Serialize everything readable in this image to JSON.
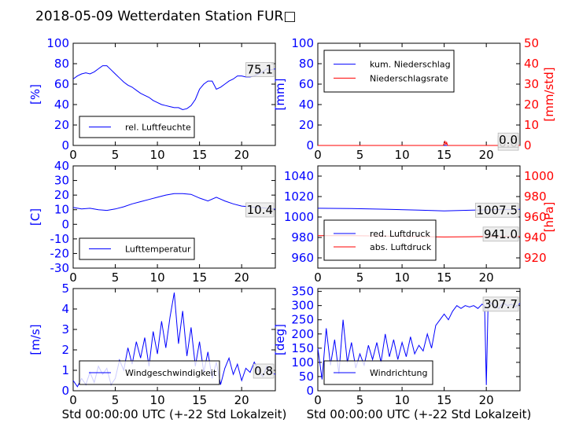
{
  "title": "2018-05-09 Wetterdaten Station FUR□",
  "colors": {
    "primary": "#0000ff",
    "secondary": "#ff0000"
  },
  "chart_data": [
    {
      "id": "humidity",
      "type": "line",
      "xlim": [
        0,
        24
      ],
      "ylim": [
        0,
        100
      ],
      "xticks": [
        0,
        5,
        10,
        15,
        20
      ],
      "yticks": [
        0,
        20,
        40,
        60,
        80,
        100
      ],
      "ylabel": "[%]",
      "legend": {
        "placement": "lower-left",
        "entries": [
          "rel. Luftfeuchte"
        ]
      },
      "last_value_label": "75.1",
      "series": [
        {
          "name": "rel. Luftfeuchte",
          "color": "#0000ff",
          "x": [
            0,
            0.5,
            1,
            1.5,
            2,
            2.5,
            3,
            3.5,
            4,
            4.5,
            5,
            5.5,
            6,
            6.5,
            7,
            7.5,
            8,
            8.5,
            9,
            9.5,
            10,
            10.5,
            11,
            11.5,
            12,
            12.5,
            13,
            13.5,
            14,
            14.5,
            15,
            15.5,
            16,
            16.5,
            17,
            17.5,
            18,
            18.5,
            19,
            19.5,
            20,
            20.5,
            21,
            21.5,
            22,
            22.5,
            23,
            23.5,
            24
          ],
          "y": [
            65,
            68,
            70,
            71,
            70,
            72,
            75,
            78,
            78,
            74,
            70,
            66,
            62,
            59,
            57,
            54,
            51,
            49,
            47,
            44,
            42,
            40,
            39,
            38,
            37,
            37,
            35,
            36,
            39,
            45,
            55,
            60,
            63,
            63,
            55,
            57,
            60,
            63,
            65,
            68,
            68,
            67,
            67,
            68,
            70,
            72,
            75,
            74,
            75
          ]
        }
      ]
    },
    {
      "id": "precipitation",
      "type": "line",
      "xlim": [
        0,
        24
      ],
      "ylim": [
        0,
        100
      ],
      "y2lim": [
        0,
        50
      ],
      "xticks": [
        0,
        5,
        10,
        15,
        20
      ],
      "yticks": [
        0,
        20,
        40,
        60,
        80,
        100
      ],
      "y2ticks": [
        0,
        10,
        20,
        30,
        40,
        50
      ],
      "ylabel": "[mm]",
      "y2label": "[mm/std]",
      "legend": {
        "placement": "top-left",
        "entries": [
          "kum. Niederschlag",
          "Niederschlagsrate"
        ]
      },
      "last_value_label": "0.0",
      "last_value_label_2": "0.0",
      "series": [
        {
          "name": "kum. Niederschlag",
          "axis": "left",
          "color": "#0000ff",
          "x": [
            0,
            24
          ],
          "y": [
            0,
            0
          ]
        },
        {
          "name": "Niederschlagsrate",
          "axis": "right",
          "color": "#ff0000",
          "x": [
            0,
            14.9,
            15.0,
            15.1,
            15.2,
            15.3,
            15.4,
            24
          ],
          "y": [
            0,
            0,
            1.0,
            2.0,
            0.5,
            1.5,
            0,
            0
          ]
        }
      ]
    },
    {
      "id": "temperature",
      "type": "line",
      "xlim": [
        0,
        24
      ],
      "ylim": [
        -30,
        40
      ],
      "xticks": [
        0,
        5,
        10,
        15,
        20
      ],
      "yticks": [
        -30,
        -20,
        -10,
        0,
        10,
        20,
        30,
        40
      ],
      "ylabel": "[C]",
      "legend": {
        "placement": "lower-left",
        "entries": [
          "Lufttemperatur"
        ]
      },
      "last_value_label": "10.4",
      "series": [
        {
          "name": "Lufttemperatur",
          "color": "#0000ff",
          "x": [
            0,
            1,
            2,
            3,
            4,
            5,
            6,
            7,
            8,
            9,
            10,
            11,
            12,
            13,
            14,
            15,
            16,
            17,
            18,
            19,
            20,
            21,
            22,
            23,
            24
          ],
          "y": [
            11.5,
            10.5,
            11,
            10,
            9.5,
            10.5,
            12,
            14,
            15.5,
            17,
            18.5,
            20,
            21,
            21,
            20.5,
            18,
            16,
            18.5,
            16,
            14,
            12.5,
            12,
            11.5,
            11,
            10.4
          ]
        }
      ]
    },
    {
      "id": "pressure",
      "type": "line",
      "xlim": [
        0,
        24
      ],
      "ylim": [
        950,
        1050
      ],
      "y2lim": [
        910,
        1010
      ],
      "xticks": [
        0,
        5,
        10,
        15,
        20
      ],
      "yticks": [
        960,
        980,
        1000,
        1020,
        1040
      ],
      "y2ticks": [
        920,
        940,
        960,
        980,
        1000
      ],
      "y2label": "[hPa]",
      "legend": {
        "placement": "lower-left",
        "entries": [
          "red. Luftdruck",
          "abs. Luftdruck"
        ]
      },
      "last_value_label": "1007.5",
      "last_value_label_2": "941.0",
      "series": [
        {
          "name": "red. Luftdruck",
          "axis": "left",
          "color": "#0000ff",
          "x": [
            0,
            4,
            8,
            12,
            15,
            18,
            21,
            24
          ],
          "y": [
            1008.5,
            1008.3,
            1007.6,
            1006.8,
            1006.0,
            1006.6,
            1007.2,
            1007.5
          ]
        },
        {
          "name": "abs. Luftdruck",
          "axis": "right",
          "color": "#ff0000",
          "x": [
            0,
            4,
            8,
            12,
            15,
            18,
            21,
            24
          ],
          "y": [
            941.8,
            941.7,
            941.3,
            940.8,
            940.5,
            940.7,
            940.9,
            941.0
          ]
        }
      ]
    },
    {
      "id": "windspeed",
      "type": "line",
      "xlim": [
        0,
        24
      ],
      "ylim": [
        0,
        5
      ],
      "xticks": [
        0,
        5,
        10,
        15,
        20
      ],
      "yticks": [
        0,
        1,
        2,
        3,
        4,
        5
      ],
      "ylabel": "[m/s]",
      "xlabel": "Std 00:00:00 UTC (+-22 Std Lokalzeit)",
      "legend": {
        "placement": "lower-left",
        "entries": [
          "Windgeschwindigkeit"
        ]
      },
      "last_value_label": "0.8",
      "series": [
        {
          "name": "Windgeschwindigkeit",
          "color": "#0000ff",
          "x": [
            0,
            0.5,
            1,
            1.5,
            2,
            2.5,
            3,
            3.5,
            4,
            4.5,
            5,
            5.5,
            6,
            6.5,
            7,
            7.5,
            8,
            8.5,
            9,
            9.5,
            10,
            10.5,
            11,
            11.5,
            12,
            12.5,
            13,
            13.5,
            14,
            14.5,
            15,
            15.5,
            16,
            16.5,
            17,
            17.5,
            18,
            18.5,
            19,
            19.5,
            20,
            20.5,
            21,
            21.5,
            22,
            22.5,
            23,
            23.5,
            24
          ],
          "y": [
            0.5,
            0.2,
            0.6,
            0.3,
            0.9,
            0.4,
            1.2,
            0.8,
            1.1,
            0.3,
            0.6,
            1.5,
            1.0,
            2.1,
            1.3,
            2.4,
            1.6,
            2.6,
            1.2,
            2.9,
            1.8,
            3.4,
            2.1,
            3.6,
            4.8,
            2.3,
            3.9,
            1.7,
            3.1,
            1.2,
            2.4,
            0.9,
            1.9,
            0.6,
            1.4,
            0.3,
            1.1,
            1.6,
            0.8,
            1.3,
            0.5,
            1.1,
            0.9,
            1.4,
            1.0,
            0.7,
            1.2,
            0.9,
            0.8
          ]
        }
      ]
    },
    {
      "id": "winddirection",
      "type": "line",
      "xlim": [
        0,
        24
      ],
      "ylim": [
        0,
        360
      ],
      "xticks": [
        0,
        5,
        10,
        15,
        20
      ],
      "yticks": [
        0,
        50,
        100,
        150,
        200,
        250,
        300,
        350
      ],
      "ylabel": "[deg]",
      "xlabel": "Std 00:00:00 UTC (+-22 Std Lokalzeit)",
      "legend": {
        "placement": "lower-left",
        "entries": [
          "Windrichtung"
        ]
      },
      "last_value_label": "307.7",
      "series": [
        {
          "name": "Windrichtung",
          "color": "#0000ff",
          "x": [
            0,
            0.5,
            1,
            1.5,
            2,
            2.5,
            3,
            3.5,
            4,
            4.5,
            5,
            5.5,
            6,
            6.5,
            7,
            7.5,
            8,
            8.5,
            9,
            9.5,
            10,
            10.5,
            11,
            11.5,
            12,
            12.5,
            13,
            13.5,
            14,
            14.5,
            15,
            15.5,
            16,
            16.5,
            17,
            17.5,
            18,
            18.5,
            19,
            19.5,
            19.8,
            20,
            20.2,
            20.5,
            21,
            21.5,
            22,
            22.5,
            23,
            23.5,
            24
          ],
          "y": [
            150,
            40,
            220,
            90,
            180,
            60,
            250,
            100,
            170,
            80,
            130,
            90,
            160,
            110,
            170,
            100,
            200,
            120,
            180,
            110,
            170,
            120,
            190,
            130,
            160,
            140,
            200,
            150,
            230,
            250,
            270,
            250,
            280,
            300,
            290,
            300,
            295,
            300,
            290,
            305,
            300,
            20,
            290,
            310,
            300,
            290,
            310,
            300,
            305,
            295,
            307.7
          ]
        }
      ]
    }
  ]
}
